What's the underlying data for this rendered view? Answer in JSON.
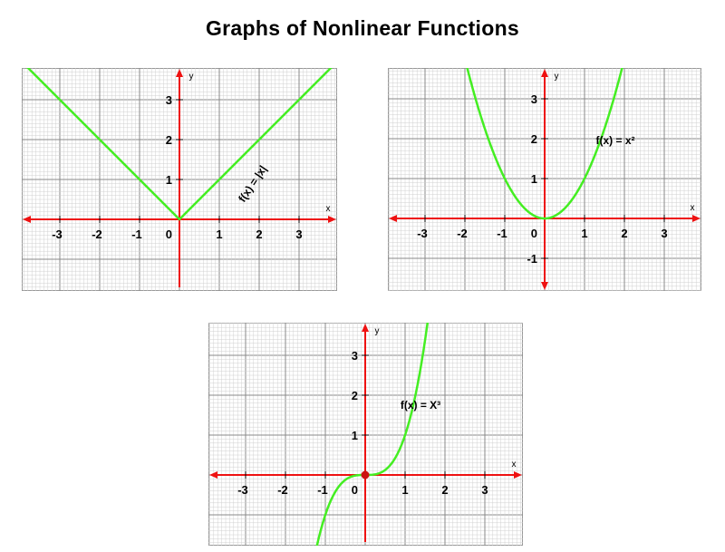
{
  "page": {
    "title": "Graphs of Nonlinear Functions"
  },
  "colors": {
    "curve": "#44ee22",
    "axis": "#ee1111",
    "grid_minor": "#d0d0d0",
    "grid_major": "#8a8a8a",
    "border": "#999999",
    "background": "#ffffff"
  },
  "chart_data": [
    {
      "type": "line",
      "function": "abs",
      "title": "",
      "function_label": "f(x) = |x|",
      "xlabel": "x",
      "ylabel": "y",
      "xlim": [
        -3.9,
        3.9
      ],
      "ylim": [
        -1.7,
        3.8
      ],
      "xticks": [
        "-3",
        "-2",
        "-1",
        "1",
        "2",
        "3"
      ],
      "yticks": [
        "1",
        "2",
        "3"
      ],
      "origin_label": "0",
      "grid": true,
      "series": [
        {
          "x": [
            -3.9,
            -3,
            -2,
            -1,
            0,
            1,
            2,
            3,
            3.9
          ],
          "y": [
            3.9,
            3,
            2,
            1,
            0,
            1,
            2,
            3,
            3.9
          ]
        }
      ]
    },
    {
      "type": "line",
      "function": "square",
      "title": "",
      "function_label": "f(x) = x²",
      "xlabel": "x",
      "ylabel": "y",
      "xlim": [
        -3.9,
        3.9
      ],
      "ylim": [
        -1.8,
        3.8
      ],
      "xticks": [
        "-3",
        "-2",
        "-1",
        "1",
        "2",
        "3"
      ],
      "yticks": [
        "-1",
        "1",
        "2",
        "3"
      ],
      "origin_label": "0",
      "grid": true,
      "series": [
        {
          "x": [
            -1.95,
            -1.5,
            -1,
            -0.5,
            0,
            0.5,
            1,
            1.5,
            1.95
          ],
          "y": [
            3.8,
            2.25,
            1,
            0.25,
            0,
            0.25,
            1,
            2.25,
            3.8
          ]
        }
      ]
    },
    {
      "type": "line",
      "function": "cube",
      "title": "",
      "function_label": "f(x) = X³",
      "xlabel": "x",
      "ylabel": "y",
      "xlim": [
        -3.9,
        3.9
      ],
      "ylim": [
        -1.9,
        3.8
      ],
      "xticks": [
        "-3",
        "-2",
        "-1",
        "1",
        "2",
        "3"
      ],
      "yticks": [
        "1",
        "2",
        "3"
      ],
      "origin_label": "0",
      "grid": true,
      "series": [
        {
          "x": [
            -1.24,
            -1,
            -0.5,
            0,
            0.5,
            1,
            1.5,
            1.56
          ],
          "y": [
            -1.9,
            -1,
            -0.125,
            0,
            0.125,
            1,
            3.375,
            3.8
          ]
        }
      ]
    }
  ]
}
